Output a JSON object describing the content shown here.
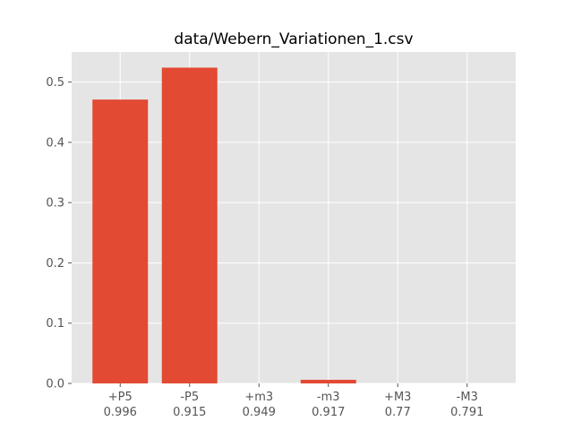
{
  "chart_data": {
    "type": "bar",
    "title": "data/Webern_Variationen_1.csv",
    "xlabel": "",
    "ylabel": "",
    "categories": [
      "+P5",
      "-P5",
      "+m3",
      "-m3",
      "+M3",
      "-M3"
    ],
    "category_sublabels": [
      "0.996",
      "0.915",
      "0.949",
      "0.917",
      "0.77",
      "0.791"
    ],
    "values": [
      0.471,
      0.524,
      0.0,
      0.006,
      0.0,
      0.0
    ],
    "ylim": [
      0,
      0.55
    ],
    "yticks": [
      0.0,
      0.1,
      0.2,
      0.3,
      0.4,
      0.5
    ],
    "ytick_labels": [
      "0.0",
      "0.1",
      "0.2",
      "0.3",
      "0.4",
      "0.5"
    ],
    "grid": true,
    "bar_color": "#e24a33",
    "background_color": "#e5e5e5",
    "grid_color": "#ffffff"
  }
}
